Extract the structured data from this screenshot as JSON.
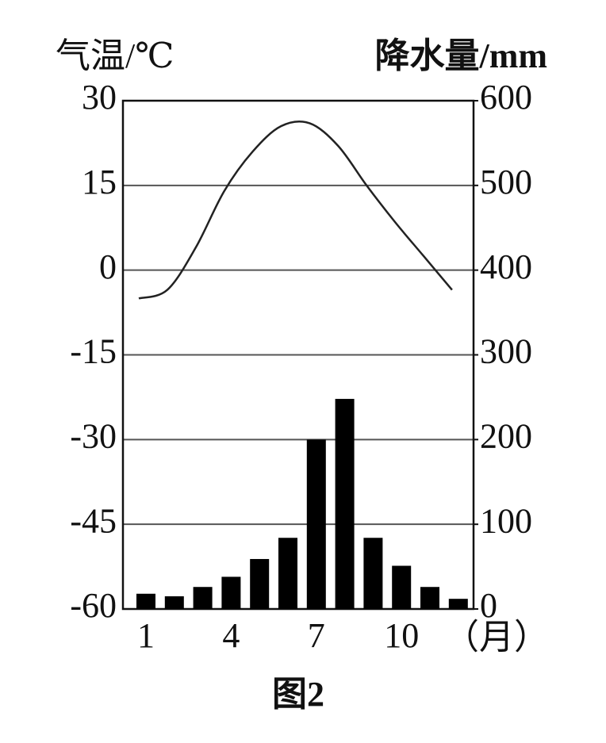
{
  "chart_data": {
    "type": "climate",
    "ylabel": "气温/℃",
    "y2label": "降水量/mm",
    "xlabel": "（月）",
    "caption": "图2",
    "categories": [
      1,
      null,
      null,
      4,
      null,
      null,
      7,
      null,
      null,
      10,
      null,
      null
    ],
    "series": [
      {
        "type": "bar",
        "axis": "y2",
        "color": "#000000",
        "values": [
          18,
          15,
          26,
          38,
          59,
          84,
          200,
          248,
          84,
          51,
          26,
          12
        ]
      },
      {
        "type": "line",
        "color": "#222222",
        "values": [
          -5,
          -3.5,
          4,
          14,
          21,
          25.5,
          26,
          22,
          15,
          8.5,
          2.5,
          -3.5
        ]
      }
    ],
    "ylim": [
      -60,
      30
    ],
    "yticks": [
      30,
      15,
      0,
      -15,
      -30,
      -45,
      -60
    ],
    "y2lim": [
      0,
      600
    ],
    "y2ticks": [
      600,
      500,
      400,
      300,
      200,
      100,
      0
    ],
    "grid": true
  }
}
